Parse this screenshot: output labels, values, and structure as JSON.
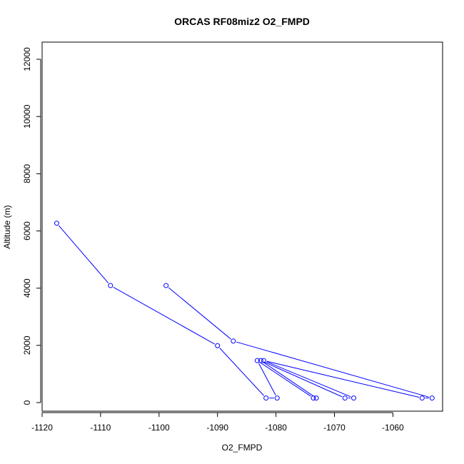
{
  "chart_data": {
    "type": "line",
    "title": "ORCAS RF08miz2 O2_FMPD",
    "xlabel": "O2_FMPD",
    "ylabel": "Altitude (m)",
    "xlim": [
      -1120,
      -1051.5
    ],
    "ylim": [
      -300,
      12600
    ],
    "x_ticks": [
      -1120,
      -1110,
      -1100,
      -1090,
      -1080,
      -1070,
      -1060
    ],
    "x_tick_labels": [
      "-1120",
      "-1110",
      "-1100",
      "-1090",
      "-1080",
      "-1070",
      "-1060"
    ],
    "y_ticks": [
      0,
      2000,
      4000,
      6000,
      8000,
      10000,
      12000
    ],
    "y_tick_labels": [
      "0",
      "2000",
      "4000",
      "6000",
      "8000",
      "10000",
      "12000"
    ],
    "grid": false,
    "series": [
      {
        "color": "#0000ff",
        "markers": "open-circle",
        "points": [
          {
            "x": -1117.5,
            "y": 6270
          },
          {
            "x": -1108.3,
            "y": 4090
          },
          {
            "x": -1090.0,
            "y": 1990
          },
          {
            "x": -1081.7,
            "y": 160
          },
          {
            "x": -1079.8,
            "y": 160
          },
          {
            "x": -1083.2,
            "y": 1470
          },
          {
            "x": -1073.6,
            "y": 160
          },
          {
            "x": -1073.1,
            "y": 160
          },
          {
            "x": -1082.6,
            "y": 1470
          },
          {
            "x": -1068.2,
            "y": 160
          },
          {
            "x": -1066.7,
            "y": 160
          },
          {
            "x": -1082.1,
            "y": 1470
          },
          {
            "x": -1055.0,
            "y": 160
          },
          {
            "x": -1053.3,
            "y": 160
          },
          {
            "x": -1087.3,
            "y": 2150
          },
          {
            "x": -1098.8,
            "y": 4090
          }
        ]
      }
    ]
  }
}
